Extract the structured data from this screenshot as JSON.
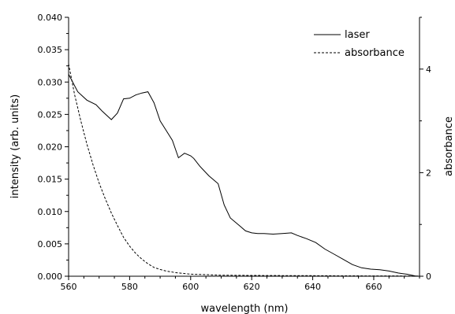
{
  "chart_data": {
    "type": "line",
    "xlabel": "wavelength (nm)",
    "ylabel": "intensity (arb. units)",
    "y2label": "absorbance",
    "xlim": [
      560,
      675
    ],
    "ylim": [
      0,
      0.04
    ],
    "y2lim": [
      0,
      5
    ],
    "x_ticks": [
      560,
      580,
      600,
      620,
      640,
      660
    ],
    "y_ticks": [
      "0.000",
      "0.005",
      "0.010",
      "0.015",
      "0.020",
      "0.025",
      "0.030",
      "0.035",
      "0.040"
    ],
    "y2_ticks": [
      "0",
      "2",
      "4"
    ],
    "grid": false,
    "legend_position": "top-right",
    "series": [
      {
        "name": "laser",
        "axis": "left",
        "style": "solid",
        "x": [
          560,
          563,
          566,
          569,
          571,
          574,
          576,
          578,
          580,
          582,
          584,
          586,
          588,
          590,
          592,
          594,
          596,
          598,
          600,
          601,
          603,
          606,
          609,
          611,
          613,
          616,
          618,
          620,
          622,
          624,
          627,
          630,
          633,
          635,
          638,
          641,
          644,
          647,
          650,
          653,
          656,
          659,
          662,
          665,
          668,
          671,
          674
        ],
        "y": [
          0.0312,
          0.0285,
          0.0272,
          0.0265,
          0.0255,
          0.0242,
          0.0252,
          0.0274,
          0.0275,
          0.028,
          0.0283,
          0.0285,
          0.0268,
          0.024,
          0.0225,
          0.021,
          0.0183,
          0.019,
          0.0186,
          0.0182,
          0.017,
          0.0155,
          0.0143,
          0.011,
          0.009,
          0.0078,
          0.007,
          0.0067,
          0.0066,
          0.0066,
          0.0065,
          0.0066,
          0.0067,
          0.0063,
          0.0058,
          0.0052,
          0.0042,
          0.0034,
          0.0026,
          0.0018,
          0.0013,
          0.0011,
          0.001,
          0.0008,
          0.0005,
          0.0003,
          0.0
        ]
      },
      {
        "name": "absorbance",
        "axis": "right",
        "style": "dashed",
        "x": [
          560,
          562,
          564,
          566,
          568,
          570,
          572,
          574,
          576,
          578,
          580,
          582,
          584,
          586,
          588,
          590,
          592,
          595,
          600,
          605,
          610,
          620,
          630,
          640,
          650,
          660,
          670,
          675
        ],
        "y": [
          4.1,
          3.5,
          3.0,
          2.55,
          2.15,
          1.8,
          1.5,
          1.22,
          0.98,
          0.75,
          0.58,
          0.44,
          0.33,
          0.24,
          0.17,
          0.13,
          0.1,
          0.07,
          0.04,
          0.03,
          0.02,
          0.015,
          0.012,
          0.01,
          0.008,
          0.006,
          0.005,
          0.004
        ]
      }
    ]
  }
}
